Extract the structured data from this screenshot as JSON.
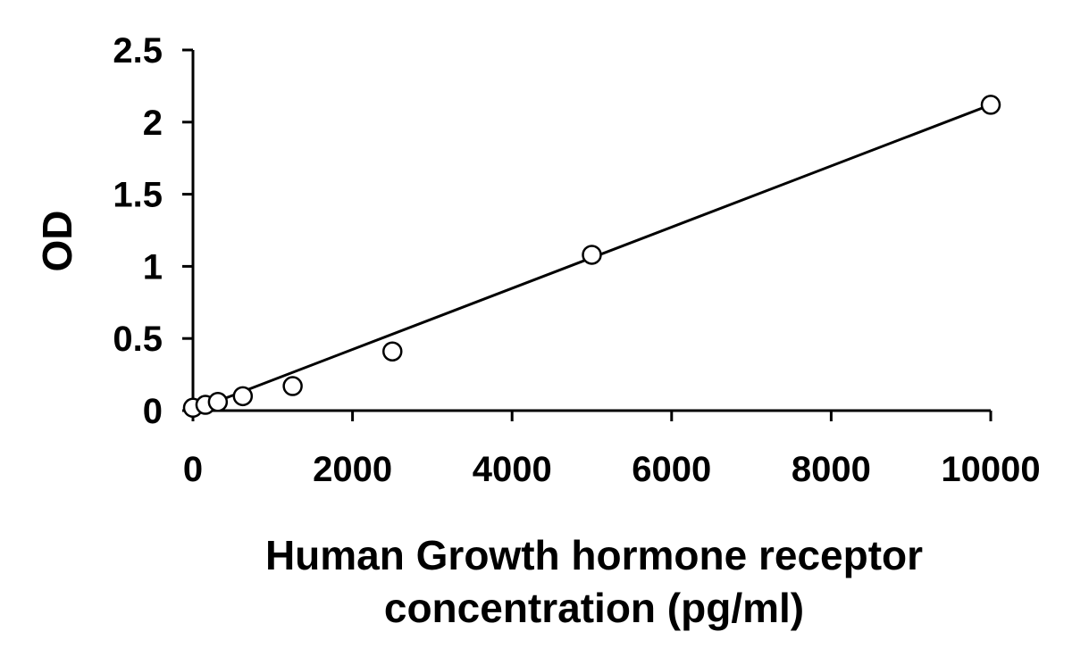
{
  "chart_data": {
    "type": "scatter",
    "title": "",
    "xlabel_lines": [
      "Human Growth hormone receptor",
      "concentration (pg/ml)"
    ],
    "ylabel": "OD",
    "xlim": [
      0,
      10000
    ],
    "ylim": [
      0,
      2.5
    ],
    "x_ticks": [
      0,
      2000,
      4000,
      6000,
      8000,
      10000
    ],
    "x_tick_labels": [
      "0",
      "2000",
      "4000",
      "6000",
      "8000",
      "10000"
    ],
    "y_ticks": [
      0,
      0.5,
      1,
      1.5,
      2,
      2.5
    ],
    "y_tick_labels": [
      "0",
      "0.5",
      "1",
      "1.5",
      "2",
      "2.5"
    ],
    "grid": false,
    "legend": "none",
    "series": [
      {
        "points": [
          {
            "x": 0,
            "y": 0.02
          },
          {
            "x": 156,
            "y": 0.04
          },
          {
            "x": 312,
            "y": 0.06
          },
          {
            "x": 625,
            "y": 0.1
          },
          {
            "x": 1250,
            "y": 0.17
          },
          {
            "x": 2500,
            "y": 0.41
          },
          {
            "x": 5000,
            "y": 1.08
          },
          {
            "x": 10000,
            "y": 2.12
          }
        ],
        "marker": "open-circle",
        "color": "#000000"
      }
    ],
    "trendline": {
      "type": "linear",
      "from": {
        "x": 0,
        "y": 0.0
      },
      "to": {
        "x": 10000,
        "y": 2.12
      },
      "color": "#000000"
    }
  }
}
